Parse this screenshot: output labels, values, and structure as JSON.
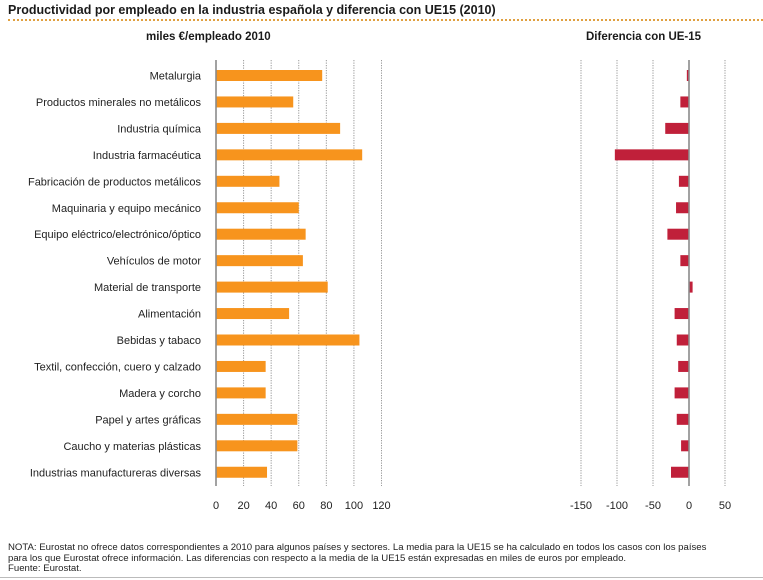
{
  "header": {
    "title": "Productividad por empleado en la industria española y diferencia con UE15 (2010)"
  },
  "colors": {
    "productivity_bar": "#f7941d",
    "difference_bar": "#c0203a",
    "axis": "#8a8a8a",
    "grid": "#9a9a9a",
    "title_rule": "#e0a040"
  },
  "chart_data": [
    {
      "type": "bar",
      "orientation": "horizontal",
      "title": "miles €/empleado 2010",
      "xlabel": "",
      "ylabel": "",
      "xlim": [
        0,
        120
      ],
      "xticks": [
        0,
        20,
        40,
        60,
        80,
        100,
        120
      ],
      "grid": true,
      "categories": [
        "Metalurgia",
        "Productos minerales no metálicos",
        "Industria química",
        "Industria farmacéutica",
        "Fabricación de productos metálicos",
        "Maquinaria y equipo mecánico",
        "Equipo eléctrico/electrónico/óptico",
        "Vehículos de motor",
        "Material de transporte",
        "Alimentación",
        "Bebidas y tabaco",
        "Textil, confección, cuero y calzado",
        "Madera y corcho",
        "Papel y artes gráficas",
        "Caucho y materias plásticas",
        "Industrias manufactureras diversas"
      ],
      "values": [
        77,
        56,
        90,
        106,
        46,
        60,
        65,
        63,
        81,
        53,
        104,
        36,
        36,
        59,
        59,
        37
      ]
    },
    {
      "type": "bar",
      "orientation": "horizontal",
      "title": "Diferencia con UE-15",
      "xlabel": "",
      "ylabel": "",
      "xlim": [
        -150,
        50
      ],
      "xticks": [
        -150,
        -100,
        -50,
        0,
        50
      ],
      "grid": true,
      "categories": [
        "Metalurgia",
        "Productos minerales no metálicos",
        "Industria química",
        "Industria farmacéutica",
        "Fabricación de productos metálicos",
        "Maquinaria y equipo mecánico",
        "Equipo eléctrico/electrónico/óptico",
        "Vehículos de motor",
        "Material de transporte",
        "Alimentación",
        "Bebidas y tabaco",
        "Textil, confección, cuero y calzado",
        "Madera y corcho",
        "Papel y artes gráficas",
        "Caucho y materias plásticas",
        "Industrias manufactureras diversas"
      ],
      "values": [
        -3,
        -12,
        -33,
        -103,
        -14,
        -18,
        -30,
        -12,
        5,
        -20,
        -17,
        -15,
        -20,
        -17,
        -11,
        -25
      ]
    }
  ],
  "footer": {
    "note_lines": [
      "NOTA: Eurostat no ofrece datos correspondientes a 2010 para algunos países y sectores. La media para la UE15 se ha calculado en todos los casos con los países",
      "para los que Eurostat ofrece información. Las diferencias con respecto a la media de la UE15 están expresadas en miles de euros por empleado.",
      "Fuente: Eurostat."
    ]
  }
}
